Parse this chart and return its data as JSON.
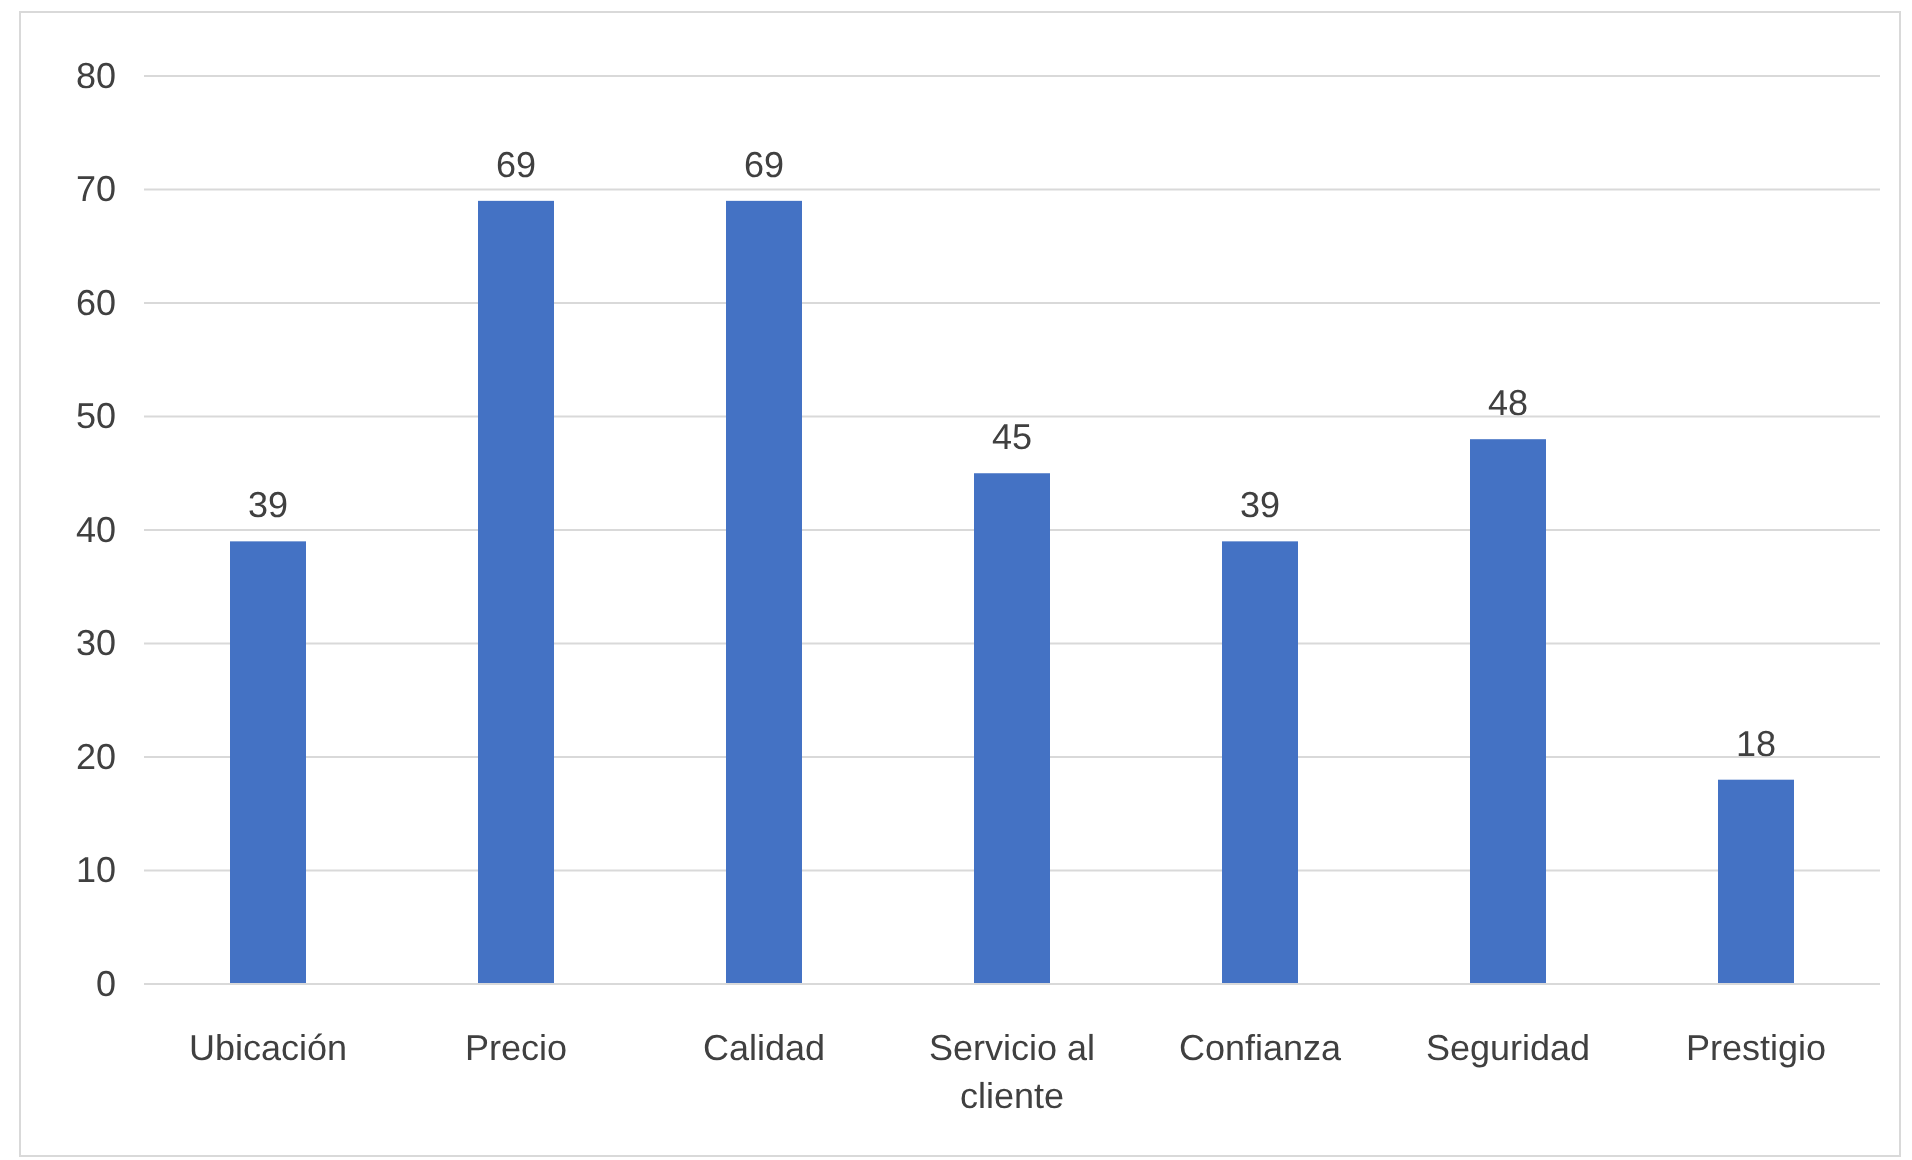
{
  "chart_data": {
    "type": "bar",
    "categories": [
      "Ubicación",
      "Precio",
      "Calidad",
      "Servicio al cliente",
      "Confianza",
      "Seguridad",
      "Prestigio"
    ],
    "values": [
      39,
      69,
      69,
      45,
      39,
      48,
      18
    ],
    "color": "#4472c4",
    "ylim": [
      0,
      80
    ],
    "yticks": [
      0,
      10,
      20,
      30,
      40,
      50,
      60,
      70,
      80
    ],
    "grid": "y",
    "data_labels": true
  }
}
